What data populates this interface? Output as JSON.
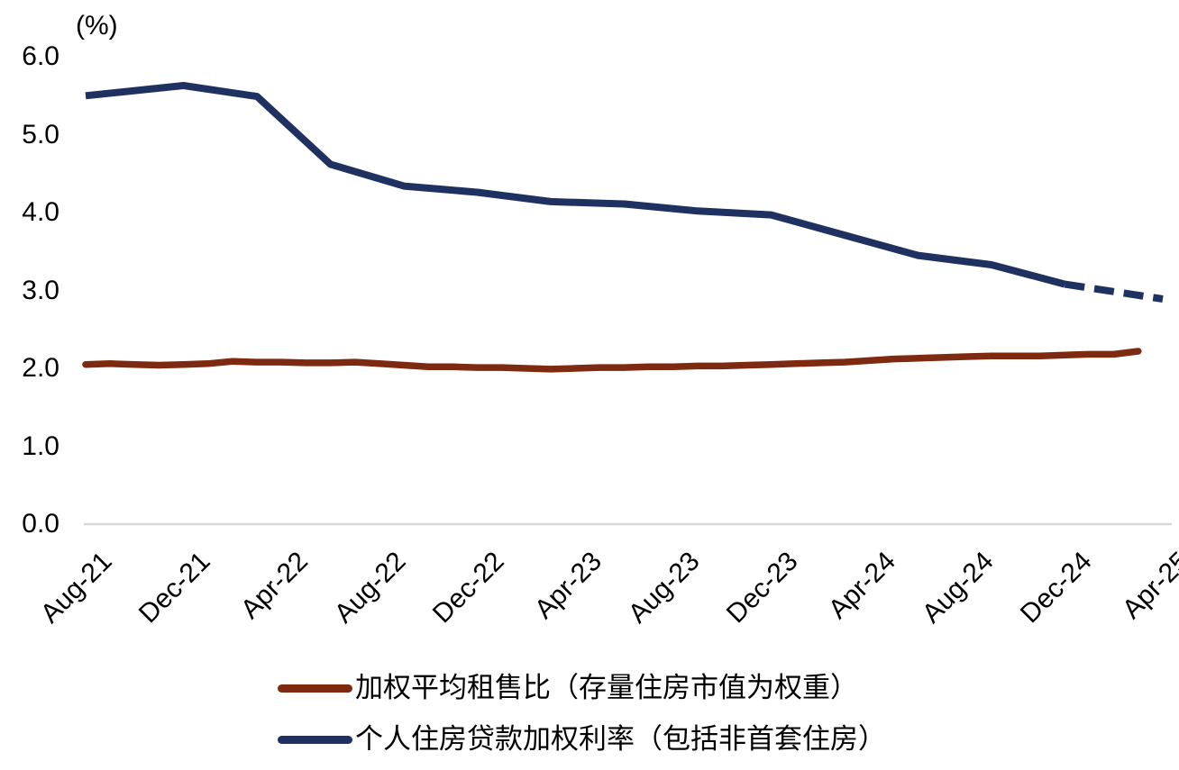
{
  "chart_data": {
    "type": "line",
    "title": "",
    "unit_label": "(%)",
    "ylim": [
      0.0,
      6.0
    ],
    "y_tick_values": [
      6.0,
      5.0,
      4.0,
      3.0,
      2.0,
      1.0,
      0.0
    ],
    "y_tick_labels": [
      "6.0",
      "5.0",
      "4.0",
      "3.0",
      "2.0",
      "1.0",
      "0.0"
    ],
    "x_tick_labels": [
      "Aug-21",
      "Dec-21",
      "Apr-22",
      "Aug-22",
      "Dec-22",
      "Apr-23",
      "Aug-23",
      "Dec-23",
      "Apr-24",
      "Aug-24",
      "Dec-24",
      "Apr-25"
    ],
    "x_tick_month_index": [
      0,
      4,
      8,
      12,
      16,
      20,
      24,
      28,
      32,
      36,
      40,
      44
    ],
    "x_month_zero": "Aug-21",
    "x_month_max": 44,
    "grid": "x-baseline-only",
    "legend_position": "bottom",
    "axis_line_color": "#D9D9D9",
    "series": [
      {
        "name": "加权平均租售比（存量住房市值为权重）",
        "color": "#7E2A10",
        "style": "solid",
        "points": [
          [
            0,
            2.05
          ],
          [
            1,
            2.06
          ],
          [
            2,
            2.05
          ],
          [
            3,
            2.04
          ],
          [
            4,
            2.05
          ],
          [
            5,
            2.06
          ],
          [
            6,
            2.09
          ],
          [
            7,
            2.08
          ],
          [
            8,
            2.08
          ],
          [
            9,
            2.07
          ],
          [
            10,
            2.07
          ],
          [
            11,
            2.08
          ],
          [
            12,
            2.06
          ],
          [
            13,
            2.04
          ],
          [
            14,
            2.02
          ],
          [
            15,
            2.02
          ],
          [
            16,
            2.01
          ],
          [
            17,
            2.01
          ],
          [
            18,
            2.0
          ],
          [
            19,
            1.99
          ],
          [
            20,
            2.0
          ],
          [
            21,
            2.01
          ],
          [
            22,
            2.01
          ],
          [
            23,
            2.02
          ],
          [
            24,
            2.02
          ],
          [
            25,
            2.03
          ],
          [
            26,
            2.03
          ],
          [
            27,
            2.04
          ],
          [
            28,
            2.05
          ],
          [
            29,
            2.06
          ],
          [
            30,
            2.07
          ],
          [
            31,
            2.08
          ],
          [
            32,
            2.1
          ],
          [
            33,
            2.12
          ],
          [
            34,
            2.13
          ],
          [
            35,
            2.14
          ],
          [
            36,
            2.15
          ],
          [
            37,
            2.16
          ],
          [
            38,
            2.16
          ],
          [
            39,
            2.16
          ],
          [
            40,
            2.17
          ],
          [
            41,
            2.18
          ],
          [
            42,
            2.18
          ],
          [
            43,
            2.22
          ]
        ]
      },
      {
        "name": "个人住房贷款加权利率（包括非首套住房）",
        "color": "#1F3161",
        "style": "solid-then-dashed",
        "points": [
          [
            0,
            5.5
          ],
          [
            4,
            5.63
          ],
          [
            7,
            5.49
          ],
          [
            10,
            4.62
          ],
          [
            13,
            4.34
          ],
          [
            16,
            4.26
          ],
          [
            19,
            4.14
          ],
          [
            22,
            4.11
          ],
          [
            25,
            4.02
          ],
          [
            28,
            3.97
          ],
          [
            31,
            3.71
          ],
          [
            34,
            3.45
          ],
          [
            37,
            3.33
          ],
          [
            40,
            3.08
          ]
        ],
        "dashed_points": [
          [
            40,
            3.08
          ],
          [
            44,
            2.89
          ]
        ]
      }
    ]
  }
}
